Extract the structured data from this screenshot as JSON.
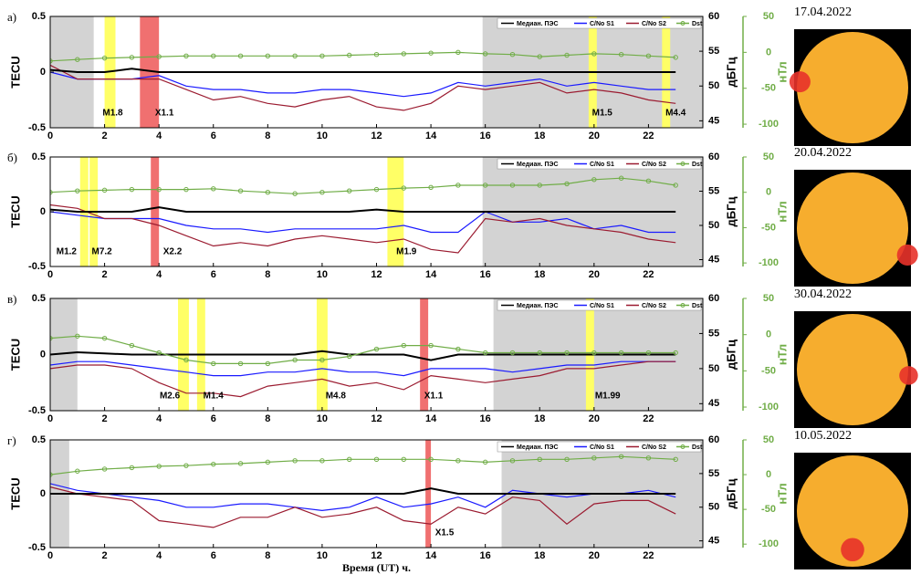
{
  "chart_data": [
    {
      "type": "line",
      "label": "а)",
      "ylabel": "TECU",
      "y2label": "дБГц",
      "y3label": "нТл",
      "xlim": [
        0,
        24
      ],
      "xticks": [
        0,
        2,
        4,
        6,
        8,
        10,
        12,
        14,
        16,
        18,
        20,
        22
      ],
      "ylim": [
        -0.5,
        0.5
      ],
      "yticks": [
        -0.5,
        0,
        0.5
      ],
      "y2lim": [
        44,
        60
      ],
      "y2ticks": [
        45,
        50,
        55,
        60
      ],
      "y3lim": [
        -105,
        50
      ],
      "y3ticks": [
        -100,
        -50,
        0,
        50
      ],
      "x": [
        0,
        1,
        2,
        3,
        4,
        5,
        6,
        7,
        8,
        9,
        10,
        11,
        12,
        13,
        14,
        15,
        16,
        17,
        18,
        19,
        20,
        21,
        22,
        23
      ],
      "series": [
        {
          "name": "Медиан. ПЭС",
          "color": "#000000",
          "values": [
            0.02,
            0,
            0,
            0.03,
            0,
            0,
            0,
            0,
            0,
            0,
            0,
            0,
            0,
            0,
            0,
            0,
            0,
            0,
            0,
            0,
            0,
            0,
            0,
            0
          ]
        },
        {
          "name": "C/No S1",
          "color": "#1a1aff",
          "axis": "y2",
          "values": [
            52,
            51,
            51,
            51,
            51.5,
            50,
            49.5,
            49.5,
            49,
            49,
            49.5,
            49.5,
            49,
            48.5,
            49,
            50.5,
            50,
            50.5,
            51,
            50,
            50.5,
            50,
            49.5,
            49.5
          ]
        },
        {
          "name": "C/No S2",
          "color": "#9b1b30",
          "axis": "y2",
          "values": [
            53,
            51,
            51,
            51,
            51,
            49.5,
            48,
            48.5,
            47.5,
            47,
            48,
            48.5,
            47,
            46.5,
            47.5,
            50,
            49.5,
            50,
            50.5,
            49,
            49.5,
            49,
            48,
            47.5
          ]
        },
        {
          "name": "Dst",
          "color": "#70ad47",
          "axis": "y3",
          "values": [
            -12,
            -10,
            -8,
            -7,
            -6,
            -5,
            -5,
            -5,
            -5,
            -5,
            -5,
            -4,
            -3,
            -2,
            -1,
            0,
            -2,
            -3,
            -6,
            -4,
            -2,
            -3,
            -5,
            -7
          ]
        }
      ],
      "spans": [
        {
          "x0": 0,
          "x1": 1.6,
          "color": "#d3d3d3"
        },
        {
          "x0": 15.9,
          "x1": 24,
          "color": "#d3d3d3"
        },
        {
          "x0": 2,
          "x1": 2.4,
          "color": "#ffff66"
        },
        {
          "x0": 19.8,
          "x1": 20.1,
          "color": "#ffff66"
        },
        {
          "x0": 22.5,
          "x1": 22.8,
          "color": "#ffff66"
        },
        {
          "x0": 3.3,
          "x1": 4,
          "color": "#f07070"
        }
      ],
      "annotations": [
        {
          "text": "M1.8",
          "x": 2.3
        },
        {
          "text": "X1.1",
          "x": 4.2
        },
        {
          "text": "M1.5",
          "x": 20.3
        },
        {
          "text": "M4.4",
          "x": 23
        }
      ]
    },
    {
      "type": "line",
      "label": "б)",
      "ylabel": "TECU",
      "y2label": "дБГц",
      "y3label": "нТл",
      "xlim": [
        0,
        24
      ],
      "xticks": [
        0,
        2,
        4,
        6,
        8,
        10,
        12,
        14,
        16,
        18,
        20,
        22
      ],
      "ylim": [
        -0.5,
        0.5
      ],
      "yticks": [
        -0.5,
        0,
        0.5
      ],
      "y2lim": [
        44,
        60
      ],
      "y2ticks": [
        45,
        50,
        55,
        60
      ],
      "y3lim": [
        -105,
        50
      ],
      "y3ticks": [
        -100,
        -50,
        0,
        50
      ],
      "x": [
        0,
        1,
        2,
        3,
        4,
        5,
        6,
        7,
        8,
        9,
        10,
        11,
        12,
        13,
        14,
        15,
        16,
        17,
        18,
        19,
        20,
        21,
        22,
        23
      ],
      "series": [
        {
          "name": "Медиан. ПЭС",
          "color": "#000000",
          "values": [
            0.02,
            0,
            0,
            0,
            0.04,
            0,
            0,
            0,
            0,
            0,
            0,
            0,
            0.02,
            0,
            0,
            0,
            0,
            0,
            0,
            0,
            0,
            0,
            0,
            0
          ]
        },
        {
          "name": "C/No S1",
          "color": "#1a1aff",
          "axis": "y2",
          "values": [
            52,
            51.5,
            51,
            51,
            51,
            50,
            49.5,
            49.5,
            49,
            49.5,
            49.5,
            49.5,
            49.5,
            50,
            49,
            49,
            52,
            50.5,
            50.5,
            51,
            49.5,
            50,
            49,
            49
          ]
        },
        {
          "name": "C/No S2",
          "color": "#9b1b30",
          "axis": "y2",
          "values": [
            53,
            52.5,
            51,
            51,
            50,
            48.5,
            47,
            47.5,
            47,
            48,
            48.5,
            48,
            47.5,
            48,
            46.5,
            46,
            51,
            50.5,
            51,
            50,
            49.5,
            49,
            48,
            47.5
          ]
        },
        {
          "name": "Dst",
          "color": "#70ad47",
          "axis": "y3",
          "values": [
            0,
            2,
            3,
            4,
            4,
            4,
            5,
            2,
            0,
            -2,
            0,
            2,
            4,
            6,
            7,
            10,
            10,
            10,
            10,
            12,
            18,
            20,
            16,
            10
          ]
        }
      ],
      "spans": [
        {
          "x0": 15.9,
          "x1": 24,
          "color": "#d3d3d3"
        },
        {
          "x0": 1.1,
          "x1": 1.4,
          "color": "#ffff66"
        },
        {
          "x0": 1.45,
          "x1": 1.75,
          "color": "#ffff66"
        },
        {
          "x0": 12.4,
          "x1": 13,
          "color": "#ffff66"
        },
        {
          "x0": 3.7,
          "x1": 4,
          "color": "#f07070"
        }
      ],
      "annotations": [
        {
          "text": "M1.2",
          "x": 0.6
        },
        {
          "text": "M7.2",
          "x": 1.9
        },
        {
          "text": "X2.2",
          "x": 4.5
        },
        {
          "text": "M1.9",
          "x": 13.1
        }
      ]
    },
    {
      "type": "line",
      "label": "в)",
      "ylabel": "TECU",
      "y2label": "дБГц",
      "y3label": "нТл",
      "xlim": [
        0,
        24
      ],
      "xticks": [
        0,
        2,
        4,
        6,
        8,
        10,
        12,
        14,
        16,
        18,
        20,
        22
      ],
      "ylim": [
        -0.5,
        0.5
      ],
      "yticks": [
        -0.5,
        0,
        0.5
      ],
      "y2lim": [
        44,
        60
      ],
      "y2ticks": [
        45,
        50,
        55,
        60
      ],
      "y3lim": [
        -105,
        50
      ],
      "y3ticks": [
        -100,
        -50,
        0,
        50
      ],
      "x": [
        0,
        1,
        2,
        3,
        4,
        5,
        6,
        7,
        8,
        9,
        10,
        11,
        12,
        13,
        14,
        15,
        16,
        17,
        18,
        19,
        20,
        21,
        22,
        23
      ],
      "series": [
        {
          "name": "Медиан. ПЭС",
          "color": "#000000",
          "values": [
            0,
            0.02,
            0.01,
            0,
            0,
            0,
            0,
            0,
            0,
            0,
            0.03,
            0,
            0,
            0,
            -0.05,
            0,
            0,
            0,
            0,
            0,
            0,
            0,
            0,
            0
          ]
        },
        {
          "name": "C/No S1",
          "color": "#1a1aff",
          "axis": "y2",
          "values": [
            50.5,
            51,
            51,
            50.5,
            50,
            49.5,
            49,
            49,
            49.5,
            49.5,
            50,
            49.5,
            49.5,
            49,
            50,
            50,
            50,
            49.5,
            50,
            50.5,
            50.5,
            51,
            51,
            51
          ]
        },
        {
          "name": "C/No S2",
          "color": "#9b1b30",
          "axis": "y2",
          "values": [
            50,
            50.5,
            50.5,
            50,
            48,
            46.5,
            46.5,
            46,
            47.5,
            48,
            48.5,
            47.5,
            48,
            47,
            49,
            48.5,
            48,
            48.5,
            49,
            50,
            50,
            50.5,
            51,
            51
          ]
        },
        {
          "name": "Dst",
          "color": "#70ad47",
          "axis": "y3",
          "values": [
            -5,
            -2,
            -5,
            -15,
            -25,
            -35,
            -40,
            -40,
            -40,
            -35,
            -35,
            -30,
            -20,
            -15,
            -15,
            -20,
            -25,
            -25,
            -25,
            -25,
            -25,
            -25,
            -25,
            -25
          ]
        }
      ],
      "spans": [
        {
          "x0": 0,
          "x1": 1,
          "color": "#d3d3d3"
        },
        {
          "x0": 16.3,
          "x1": 24,
          "color": "#d3d3d3"
        },
        {
          "x0": 4.7,
          "x1": 5.1,
          "color": "#ffff66"
        },
        {
          "x0": 5.4,
          "x1": 5.7,
          "color": "#ffff66"
        },
        {
          "x0": 9.8,
          "x1": 10.2,
          "color": "#ffff66"
        },
        {
          "x0": 19.7,
          "x1": 20,
          "color": "#ffff66"
        },
        {
          "x0": 13.6,
          "x1": 13.9,
          "color": "#f07070"
        }
      ],
      "annotations": [
        {
          "text": "M2.6",
          "x": 4.4
        },
        {
          "text": "M1.4",
          "x": 6
        },
        {
          "text": "M4.8",
          "x": 10.5
        },
        {
          "text": "X1.1",
          "x": 14.1
        },
        {
          "text": "M1.99",
          "x": 20.5
        }
      ]
    },
    {
      "type": "line",
      "label": "г)",
      "ylabel": "TECU",
      "y2label": "дБГц",
      "y3label": "нТл",
      "xlabel": "Время (UT) ч.",
      "xlim": [
        0,
        24
      ],
      "xticks": [
        0,
        2,
        4,
        6,
        8,
        10,
        12,
        14,
        16,
        18,
        20,
        22
      ],
      "ylim": [
        -0.5,
        0.5
      ],
      "yticks": [
        -0.5,
        0,
        0.5
      ],
      "y2lim": [
        44,
        60
      ],
      "y2ticks": [
        45,
        50,
        55,
        60
      ],
      "y3lim": [
        -105,
        50
      ],
      "y3ticks": [
        -100,
        -50,
        0,
        50
      ],
      "x": [
        0,
        1,
        2,
        3,
        4,
        5,
        6,
        7,
        8,
        9,
        10,
        11,
        12,
        13,
        14,
        15,
        16,
        17,
        18,
        19,
        20,
        21,
        22,
        23
      ],
      "series": [
        {
          "name": "Медиан. ПЭС",
          "color": "#000000",
          "values": [
            0,
            0,
            0,
            0,
            0,
            0,
            0,
            0,
            0,
            0,
            0,
            0,
            0,
            0,
            0.05,
            0,
            0,
            0,
            0,
            0,
            0,
            0,
            0,
            0
          ]
        },
        {
          "name": "C/No S1",
          "color": "#1a1aff",
          "axis": "y2",
          "values": [
            53.5,
            52.5,
            52,
            51.5,
            51,
            50,
            50,
            50.5,
            50.5,
            50,
            49.5,
            50,
            51.5,
            50,
            50.5,
            51.5,
            50,
            52.5,
            52,
            51.5,
            52,
            52,
            52.5,
            51.5
          ]
        },
        {
          "name": "C/No S2",
          "color": "#9b1b30",
          "axis": "y2",
          "values": [
            53,
            52,
            51.5,
            51,
            48,
            47.5,
            47,
            48.5,
            48.5,
            50,
            48.5,
            49,
            50,
            48,
            47.5,
            50,
            49,
            51.5,
            51,
            47.5,
            50.5,
            51,
            51,
            49
          ]
        },
        {
          "name": "Dst",
          "color": "#70ad47",
          "axis": "y3",
          "values": [
            0,
            5,
            8,
            10,
            12,
            13,
            15,
            16,
            18,
            20,
            20,
            22,
            22,
            22,
            22,
            20,
            18,
            20,
            22,
            22,
            24,
            26,
            24,
            22
          ]
        }
      ],
      "spans": [
        {
          "x0": 0,
          "x1": 0.7,
          "color": "#d3d3d3"
        },
        {
          "x0": 16.6,
          "x1": 24,
          "color": "#d3d3d3"
        },
        {
          "x0": 13.8,
          "x1": 14,
          "color": "#f07070"
        }
      ],
      "annotations": [
        {
          "text": "X1.5",
          "x": 14.5
        }
      ]
    }
  ],
  "images": [
    {
      "date": "17.04.2022"
    },
    {
      "date": "20.04.2022"
    },
    {
      "date": "30.04.2022"
    },
    {
      "date": "10.05.2022"
    }
  ]
}
